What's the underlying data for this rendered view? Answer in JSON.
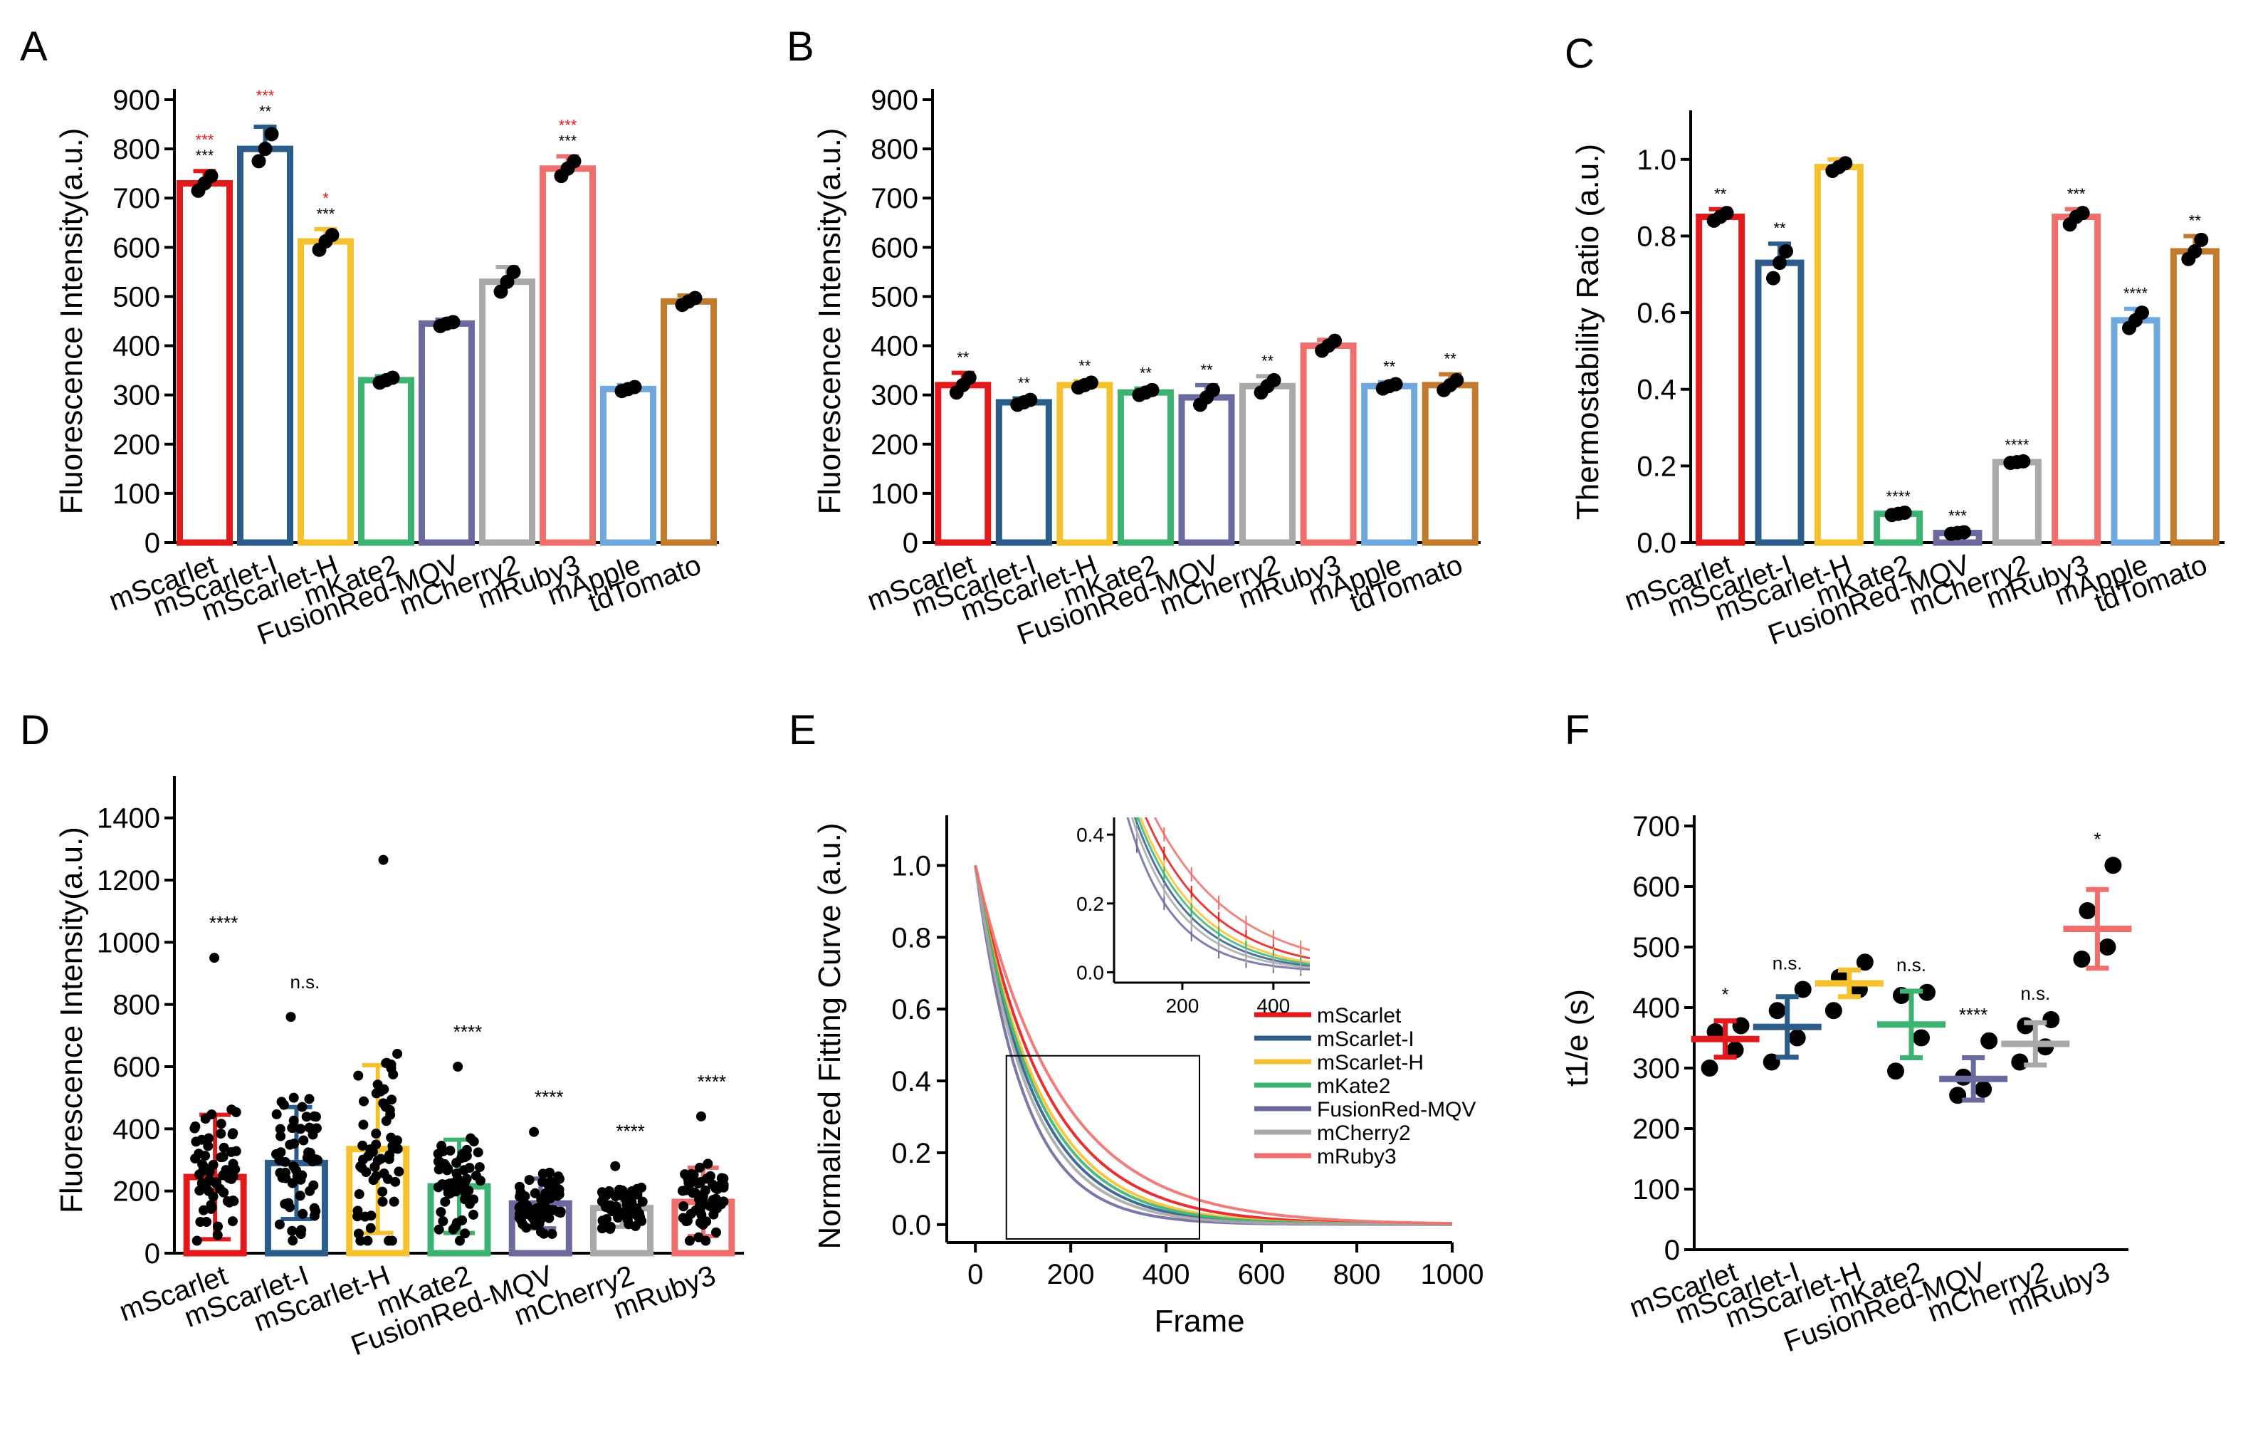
{
  "panels": [
    {
      "id": "A",
      "label": "A",
      "kind": "bar",
      "ylabel": "Fluorescence Intensity(a.u.)",
      "ylim": [
        0,
        900
      ],
      "yticks": [
        "0",
        "100",
        "200",
        "300",
        "400",
        "500",
        "600",
        "700",
        "800",
        "900"
      ],
      "categories": [
        "mScarlet",
        "mScarlet-I",
        "mScarlet-H",
        "mKate2",
        "FusionRed-MQV",
        "mCherry2",
        "mRuby3",
        "mApple",
        "tdTomato"
      ],
      "values": [
        730,
        800,
        612,
        330,
        445,
        530,
        760,
        312,
        490
      ],
      "errors": [
        25,
        45,
        25,
        8,
        8,
        30,
        25,
        8,
        12
      ],
      "points": [
        [
          715,
          730,
          745
        ],
        [
          775,
          800,
          830
        ],
        [
          595,
          612,
          625
        ],
        [
          325,
          330,
          335
        ],
        [
          440,
          445,
          448
        ],
        [
          510,
          530,
          550
        ],
        [
          745,
          760,
          775
        ],
        [
          308,
          312,
          316
        ],
        [
          483,
          490,
          497
        ]
      ],
      "sig_black": [
        "***",
        "**",
        "***",
        "",
        "",
        "",
        "***",
        "",
        ""
      ],
      "sig_red": [
        "***",
        "***",
        "*",
        "",
        "",
        "",
        "***",
        "",
        ""
      ]
    },
    {
      "id": "B",
      "label": "B",
      "kind": "bar",
      "ylabel": "Fluorescence Intensity(a.u.)",
      "ylim": [
        0,
        900
      ],
      "yticks": [
        "0",
        "100",
        "200",
        "300",
        "400",
        "500",
        "600",
        "700",
        "800",
        "900"
      ],
      "categories": [
        "mScarlet",
        "mScarlet-I",
        "mScarlet-H",
        "mKate2",
        "FusionRed-MQV",
        "mCherry2",
        "mRuby3",
        "mApple",
        "tdTomato"
      ],
      "values": [
        320,
        285,
        320,
        305,
        295,
        318,
        400,
        318,
        320
      ],
      "errors": [
        25,
        8,
        8,
        8,
        25,
        20,
        12,
        8,
        22
      ],
      "points": [
        [
          305,
          320,
          335
        ],
        [
          280,
          285,
          290
        ],
        [
          315,
          320,
          325
        ],
        [
          300,
          305,
          310
        ],
        [
          280,
          295,
          310
        ],
        [
          305,
          318,
          330
        ],
        [
          390,
          400,
          410
        ],
        [
          313,
          318,
          322
        ],
        [
          310,
          320,
          330
        ]
      ],
      "sig_black": [
        "**",
        "**",
        "**",
        "**",
        "**",
        "**",
        "",
        "**",
        "**"
      ]
    },
    {
      "id": "C",
      "label": "C",
      "kind": "bar",
      "ylabel": "Thermostability Ratio (a.u.)",
      "ylim": [
        0,
        1.1
      ],
      "yticks": [
        "0.0",
        "0.2",
        "0.4",
        "0.6",
        "0.8",
        "1.0"
      ],
      "categories": [
        "mScarlet",
        "mScarlet-I",
        "mScarlet-H",
        "mKate2",
        "FusionRed-MQV",
        "mCherry2",
        "mRuby3",
        "mApple",
        "tdTomato"
      ],
      "values": [
        0.85,
        0.73,
        0.98,
        0.075,
        0.025,
        0.21,
        0.85,
        0.58,
        0.76
      ],
      "errors": [
        0.02,
        0.05,
        0.02,
        0.005,
        0.005,
        0.005,
        0.02,
        0.03,
        0.04
      ],
      "points": [
        [
          0.84,
          0.85,
          0.86
        ],
        [
          0.69,
          0.73,
          0.76
        ],
        [
          0.97,
          0.98,
          0.99
        ],
        [
          0.072,
          0.075,
          0.078
        ],
        [
          0.023,
          0.025,
          0.027
        ],
        [
          0.208,
          0.21,
          0.212
        ],
        [
          0.83,
          0.85,
          0.86
        ],
        [
          0.56,
          0.58,
          0.6
        ],
        [
          0.74,
          0.76,
          0.79
        ]
      ],
      "sig_black": [
        "**",
        "**",
        "",
        "****",
        "***",
        "****",
        "***",
        "****",
        "**"
      ]
    },
    {
      "id": "D",
      "label": "D",
      "kind": "bar_scatter",
      "ylabel": "Fluorescence Intensity(a.u.)",
      "ylim": [
        0,
        1500
      ],
      "yticks": [
        "0",
        "200",
        "400",
        "600",
        "800",
        "1000",
        "1200",
        "1400"
      ],
      "categories": [
        "mScarlet",
        "mScarlet-I",
        "mScarlet-H",
        "mKate2",
        "FusionRed-MQV",
        "mCherry2",
        "mRuby3"
      ],
      "values": [
        245,
        290,
        335,
        215,
        160,
        145,
        165
      ],
      "sd": [
        200,
        180,
        270,
        150,
        80,
        60,
        110
      ],
      "max_points": [
        950,
        760,
        1265,
        600,
        390,
        280,
        440
      ],
      "sig_black": [
        "****",
        "n.s.",
        "",
        "****",
        "****",
        "****",
        "****"
      ]
    },
    {
      "id": "E",
      "label": "E",
      "kind": "line",
      "ylabel": "Normalized Fitting Curve (a.u.)",
      "xlabel": "Frame",
      "xlim": [
        -60,
        1000
      ],
      "ylim": [
        -0.05,
        1.1
      ],
      "xticks": [
        "0",
        "200",
        "400",
        "600",
        "800",
        "1000"
      ],
      "yticks": [
        "0.0",
        "0.2",
        "0.4",
        "0.6",
        "0.8",
        "1.0"
      ],
      "series": [
        {
          "name": "mScarlet",
          "tau": 150
        },
        {
          "name": "mScarlet-I",
          "tau": 120
        },
        {
          "name": "mScarlet-H",
          "tau": 135
        },
        {
          "name": "mKate2",
          "tau": 128
        },
        {
          "name": "FusionRed-MQV",
          "tau": 100
        },
        {
          "name": "mCherry2",
          "tau": 112
        },
        {
          "name": "mRuby3",
          "tau": 175
        }
      ],
      "inset": {
        "xlim": [
          50,
          480
        ],
        "ylim": [
          -0.03,
          0.45
        ],
        "xticks": [
          "200",
          "400"
        ],
        "yticks": [
          "0.0",
          "0.2",
          "0.4"
        ]
      }
    },
    {
      "id": "F",
      "label": "F",
      "kind": "dot",
      "ylabel": "t1/e (s)",
      "ylim": [
        0,
        700
      ],
      "yticks": [
        "0",
        "100",
        "200",
        "300",
        "400",
        "500",
        "600",
        "700"
      ],
      "categories": [
        "mScarlet",
        "mScarlet-I",
        "mScarlet-H",
        "mKate2",
        "FusionRed-MQV",
        "mCherry2",
        "mRuby3"
      ],
      "means": [
        348,
        368,
        440,
        372,
        282,
        340,
        530
      ],
      "sd": [
        30,
        50,
        22,
        55,
        35,
        35,
        65
      ],
      "points": [
        [
          300,
          330,
          360,
          370
        ],
        [
          310,
          350,
          395,
          430
        ],
        [
          395,
          430,
          450,
          475
        ],
        [
          295,
          350,
          420,
          425
        ],
        [
          255,
          265,
          285,
          345
        ],
        [
          310,
          335,
          370,
          380
        ],
        [
          480,
          500,
          560,
          635
        ]
      ],
      "sig_black": [
        "*",
        "n.s.",
        "",
        "n.s.",
        "****",
        "n.s.",
        "*"
      ]
    }
  ],
  "colors": {
    "mScarlet": "#e31a1c",
    "mScarlet-I": "#2b5c8a",
    "mScarlet-H": "#f5c12e",
    "mKate2": "#3cb371",
    "FusionRed-MQV": "#6a6a9e",
    "mCherry2": "#a9a9a9",
    "mRuby3": "#ef6f6c",
    "mApple": "#6fa8dc",
    "tdTomato": "#c27a2c",
    "sig_red": "#e31a1c"
  }
}
